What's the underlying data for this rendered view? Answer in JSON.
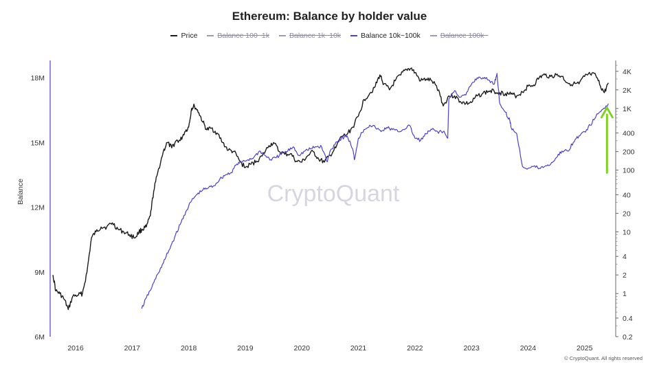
{
  "title": "Ethereum: Balance by holder value",
  "legend": [
    {
      "label": "Price",
      "color": "#1a1a1a",
      "visible": true
    },
    {
      "label": "Balance 100~1k",
      "color": "#9a9ab0",
      "visible": false
    },
    {
      "label": "Balance 1k~10k",
      "color": "#9a9ab0",
      "visible": false
    },
    {
      "label": "Balance 10k~100k",
      "color": "#4b3fd0",
      "visible": true
    },
    {
      "label": "Balance 100k~",
      "color": "#9a9ab0",
      "visible": false
    }
  ],
  "watermark": "CryptoQuant",
  "footer": "© CryptoQuant. All rights reserved",
  "colors": {
    "price": "#1a1a1a",
    "balance": "#4b3fd0",
    "arrow": "#7ed321",
    "axis_left": "#7b5fe0"
  },
  "chart_data": {
    "type": "line",
    "x_ticks": [
      "2016",
      "2017",
      "2018",
      "2019",
      "2020",
      "2021",
      "2022",
      "2023",
      "2024",
      "2025"
    ],
    "x_range": [
      2015.55,
      2025.55
    ],
    "left_axis": {
      "label": "Balance",
      "ticks": [
        "6M",
        "9M",
        "12M",
        "15M",
        "18M"
      ],
      "tick_values": [
        6,
        9,
        12,
        15,
        18
      ],
      "unit": "M",
      "range": [
        6,
        18.8
      ]
    },
    "right_axis": {
      "scale": "log",
      "ticks": [
        "0.2",
        "0.4",
        "1",
        "2",
        "4",
        "10",
        "20",
        "40",
        "100",
        "200",
        "400",
        "1K",
        "2K",
        "4K"
      ],
      "tick_values": [
        0.2,
        0.4,
        1,
        2,
        4,
        10,
        20,
        40,
        100,
        200,
        400,
        1000,
        2000,
        4000
      ],
      "range": [
        0.2,
        6000
      ]
    },
    "series": [
      {
        "name": "Price",
        "axis": "right",
        "color": "#1a1a1a",
        "x": [
          2015.6,
          2015.65,
          2015.72,
          2015.8,
          2015.87,
          2015.95,
          2016.05,
          2016.12,
          2016.2,
          2016.28,
          2016.36,
          2016.45,
          2016.55,
          2016.65,
          2016.75,
          2016.85,
          2016.95,
          2017.05,
          2017.12,
          2017.18,
          2017.25,
          2017.32,
          2017.38,
          2017.45,
          2017.55,
          2017.62,
          2017.7,
          2017.78,
          2017.85,
          2017.93,
          2018.0,
          2018.05,
          2018.1,
          2018.18,
          2018.25,
          2018.32,
          2018.4,
          2018.5,
          2018.6,
          2018.7,
          2018.8,
          2018.9,
          2019.0,
          2019.1,
          2019.2,
          2019.3,
          2019.42,
          2019.5,
          2019.6,
          2019.7,
          2019.8,
          2019.9,
          2020.0,
          2020.1,
          2020.2,
          2020.3,
          2020.4,
          2020.5,
          2020.6,
          2020.7,
          2020.8,
          2020.9,
          2021.0,
          2021.1,
          2021.2,
          2021.3,
          2021.38,
          2021.45,
          2021.55,
          2021.65,
          2021.75,
          2021.85,
          2021.93,
          2022.0,
          2022.1,
          2022.2,
          2022.3,
          2022.42,
          2022.5,
          2022.6,
          2022.7,
          2022.8,
          2022.9,
          2023.0,
          2023.1,
          2023.2,
          2023.3,
          2023.4,
          2023.5,
          2023.6,
          2023.7,
          2023.8,
          2023.9,
          2024.0,
          2024.1,
          2024.2,
          2024.3,
          2024.4,
          2024.5,
          2024.6,
          2024.7,
          2024.8,
          2024.9,
          2025.0,
          2025.1,
          2025.2,
          2025.28,
          2025.35,
          2025.42
        ],
        "y": [
          2.0,
          1.1,
          1.0,
          0.8,
          0.55,
          0.9,
          0.95,
          1.0,
          2.2,
          8.0,
          10.0,
          12.0,
          12.0,
          14.0,
          11.0,
          10.0,
          9.0,
          8.0,
          10.0,
          11.0,
          12.0,
          18.0,
          45.0,
          90.0,
          200.0,
          280.0,
          230.0,
          300.0,
          300.0,
          420.0,
          500.0,
          1000.0,
          1100.0,
          850.0,
          600.0,
          450.0,
          480.0,
          400.0,
          280.0,
          210.0,
          200.0,
          140.0,
          110.0,
          125.0,
          140.0,
          170.0,
          250.0,
          280.0,
          200.0,
          180.0,
          185.0,
          140.0,
          135.0,
          170.0,
          200.0,
          150.0,
          135.0,
          175.0,
          230.0,
          350.0,
          380.0,
          500.0,
          750.0,
          1400.0,
          1750.0,
          2300.0,
          3500.0,
          2500.0,
          2000.0,
          2800.0,
          3500.0,
          4300.0,
          4500.0,
          3800.0,
          2800.0,
          3000.0,
          2800.0,
          2000.0,
          1100.0,
          1600.0,
          1600.0,
          1300.0,
          1200.0,
          1250.0,
          1600.0,
          1750.0,
          1900.0,
          1900.0,
          1800.0,
          1750.0,
          1700.0,
          1600.0,
          1850.0,
          2300.0,
          2400.0,
          3200.0,
          3500.0,
          3300.0,
          3500.0,
          3300.0,
          2600.0,
          2500.0,
          2500.0,
          3300.0,
          3600.0,
          3400.0,
          2300.0,
          1800.0,
          2600.0
        ]
      },
      {
        "name": "Balance 10k~100k",
        "axis": "left",
        "color": "#4b3fd0",
        "x": [
          2017.17,
          2017.25,
          2017.35,
          2017.45,
          2017.55,
          2017.65,
          2017.75,
          2017.85,
          2017.95,
          2018.05,
          2018.15,
          2018.25,
          2018.35,
          2018.45,
          2018.55,
          2018.65,
          2018.75,
          2018.85,
          2018.95,
          2019.05,
          2019.15,
          2019.25,
          2019.35,
          2019.45,
          2019.55,
          2019.65,
          2019.75,
          2019.85,
          2019.95,
          2020.05,
          2020.15,
          2020.25,
          2020.35,
          2020.45,
          2020.5,
          2020.6,
          2020.7,
          2020.8,
          2020.9,
          2020.93,
          2021.0,
          2021.1,
          2021.2,
          2021.3,
          2021.4,
          2021.5,
          2021.6,
          2021.7,
          2021.8,
          2021.9,
          2022.0,
          2022.1,
          2022.2,
          2022.3,
          2022.4,
          2022.5,
          2022.58,
          2022.6,
          2022.7,
          2022.8,
          2022.9,
          2023.0,
          2023.1,
          2023.2,
          2023.3,
          2023.4,
          2023.45,
          2023.5,
          2023.6,
          2023.68,
          2023.7,
          2023.8,
          2023.9,
          2024.0,
          2024.1,
          2024.2,
          2024.3,
          2024.4,
          2024.5,
          2024.6,
          2024.7,
          2024.8,
          2024.9,
          2025.0,
          2025.1,
          2025.2,
          2025.3,
          2025.42
        ],
        "y": [
          7.3,
          7.8,
          8.3,
          8.9,
          9.4,
          10.0,
          10.6,
          11.2,
          11.8,
          12.3,
          12.6,
          12.8,
          12.9,
          13.0,
          13.3,
          13.5,
          13.6,
          14.0,
          14.1,
          14.2,
          14.3,
          14.6,
          14.4,
          14.2,
          14.3,
          14.5,
          14.6,
          14.8,
          14.4,
          14.6,
          14.7,
          14.8,
          14.8,
          14.1,
          14.6,
          15.0,
          15.2,
          15.3,
          14.7,
          14.2,
          15.2,
          15.6,
          15.8,
          15.7,
          15.5,
          15.7,
          15.6,
          15.5,
          15.6,
          15.8,
          15.2,
          15.1,
          15.4,
          15.6,
          15.5,
          15.5,
          15.2,
          17.0,
          17.4,
          17.1,
          17.2,
          17.7,
          18.0,
          18.0,
          17.9,
          17.7,
          18.2,
          16.8,
          16.4,
          16.0,
          15.7,
          15.4,
          13.9,
          13.8,
          13.9,
          13.8,
          13.9,
          14.0,
          14.3,
          14.6,
          14.6,
          15.0,
          15.3,
          15.5,
          15.8,
          16.2,
          16.5,
          16.8
        ]
      }
    ],
    "annotation": {
      "type": "arrow",
      "direction": "up",
      "color": "#7ed321"
    }
  }
}
